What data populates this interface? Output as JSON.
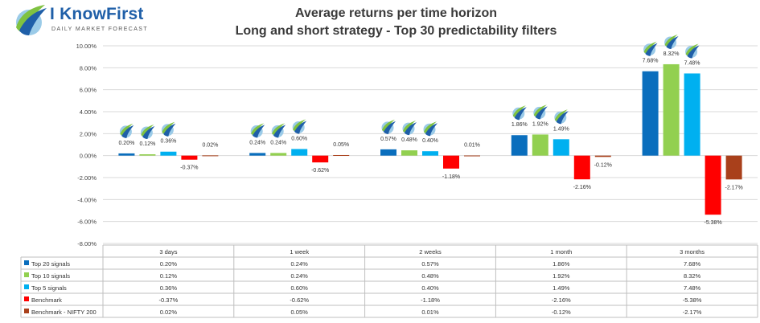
{
  "logo": {
    "brand": "I KnowFirst",
    "tagline": "DAILY MARKET FORECAST",
    "icon": "globe-swoosh-logo"
  },
  "chart_data": {
    "type": "bar",
    "title": "Average returns per time horizon",
    "subtitle": "Long and short strategy - Top 30  predictability filters",
    "categories": [
      "3 days",
      "1 week",
      "2 weeks",
      "1 month",
      "3 months"
    ],
    "ylim": [
      -8,
      10
    ],
    "ytick_step": 2,
    "ytick_labels": [
      "10.00%",
      "8.00%",
      "6.00%",
      "4.00%",
      "2.00%",
      "0.00%",
      "-2.00%",
      "-4.00%",
      "-6.00%",
      "-8.00%"
    ],
    "grid": true,
    "series": [
      {
        "name": "Top 20 signals",
        "color": "#0a6ebd",
        "values": [
          0.2,
          0.24,
          0.57,
          1.86,
          7.68
        ],
        "labels": [
          "0.20%",
          "0.24%",
          "0.57%",
          "1.86%",
          "7.68%"
        ]
      },
      {
        "name": "Top 10 signals",
        "color": "#92d050",
        "values": [
          0.12,
          0.24,
          0.48,
          1.92,
          8.32
        ],
        "labels": [
          "0.12%",
          "0.24%",
          "0.48%",
          "1.92%",
          "8.32%"
        ]
      },
      {
        "name": "Top 5 signals",
        "color": "#00b0f0",
        "values": [
          0.36,
          0.6,
          0.4,
          1.49,
          7.48
        ],
        "labels": [
          "0.36%",
          "0.60%",
          "0.40%",
          "1.49%",
          "7.48%"
        ]
      },
      {
        "name": "Benchmark",
        "color": "#ff0000",
        "values": [
          -0.37,
          -0.62,
          -1.18,
          -2.16,
          -5.38
        ],
        "labels": [
          "-0.37%",
          "-0.62%",
          "-1.18%",
          "-2.16%",
          "-5.38%"
        ]
      },
      {
        "name": "Benchmark - NIFTY 200",
        "color": "#a9401b",
        "values": [
          0.02,
          0.05,
          0.01,
          -0.12,
          -2.17
        ],
        "labels": [
          "0.02%",
          "0.05%",
          "0.01%",
          "-0.12%",
          "-2.17%"
        ]
      }
    ],
    "icon_series": [
      "Top 20 signals",
      "Top 10 signals",
      "Top 5 signals"
    ],
    "icon": "iknowfirst-swoosh-icon",
    "legend": "data table below chart"
  }
}
